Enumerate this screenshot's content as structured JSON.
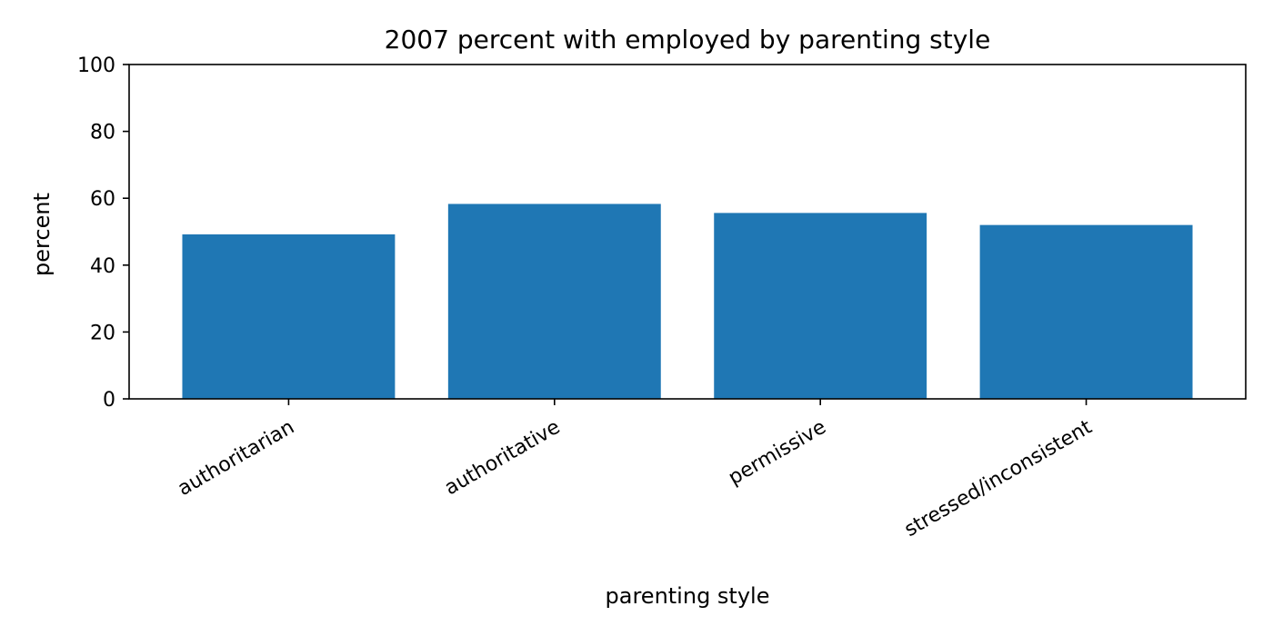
{
  "chart_data": {
    "type": "bar",
    "title": "2007 percent with employed by parenting style",
    "xlabel": "parenting style",
    "ylabel": "percent",
    "categories": [
      "authoritarian",
      "authoritative",
      "permissive",
      "stressed/inconsistent"
    ],
    "values": [
      49.2,
      58.3,
      55.6,
      52.0
    ],
    "ylim": [
      0,
      100
    ],
    "yticks": [
      0,
      20,
      40,
      60,
      80,
      100
    ],
    "ytick_labels": [
      "0",
      "20",
      "40",
      "60",
      "80",
      "100"
    ],
    "bar_color": "#1f77b4",
    "grid": false,
    "legend": "none"
  }
}
